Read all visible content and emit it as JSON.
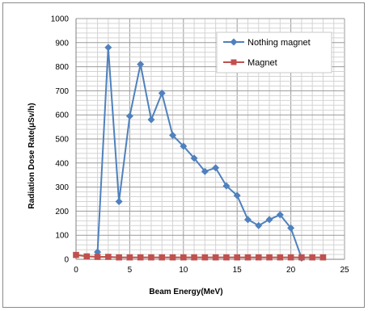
{
  "chart_data": {
    "type": "line",
    "xlabel": "Beam Energy(MeV)",
    "ylabel": "Radiation Dose Rate(μSv/h)",
    "xlim": [
      0,
      25
    ],
    "ylim": [
      0,
      1000
    ],
    "xticks": [
      0,
      5,
      10,
      15,
      20,
      25
    ],
    "yticks": [
      0,
      100,
      200,
      300,
      400,
      500,
      600,
      700,
      800,
      900,
      1000
    ],
    "xtick_labels": [
      "0",
      "5",
      "10",
      "15",
      "20",
      "25"
    ],
    "ytick_labels": [
      "0",
      "100",
      "200",
      "300",
      "400",
      "500",
      "600",
      "700",
      "800",
      "900",
      "1000"
    ],
    "grid": true,
    "legend_position": "top-right",
    "series": [
      {
        "name": "Nothing magnet",
        "color": "#4f81bd",
        "marker": "diamond",
        "x": [
          2,
          3,
          4,
          5,
          6,
          7,
          8,
          9,
          10,
          11,
          12,
          13,
          14,
          15,
          16,
          17,
          18,
          19,
          20,
          21
        ],
        "y": [
          30,
          880,
          240,
          595,
          810,
          580,
          690,
          515,
          470,
          420,
          365,
          380,
          305,
          265,
          165,
          140,
          165,
          185,
          130,
          5
        ]
      },
      {
        "name": "Magnet",
        "color": "#c0504d",
        "marker": "square",
        "x": [
          0,
          1,
          2,
          3,
          4,
          5,
          6,
          7,
          8,
          9,
          10,
          11,
          12,
          13,
          14,
          15,
          16,
          17,
          18,
          19,
          20,
          21,
          22,
          23
        ],
        "y": [
          18,
          12,
          10,
          10,
          8,
          8,
          8,
          8,
          8,
          8,
          8,
          8,
          8,
          8,
          8,
          8,
          8,
          8,
          8,
          8,
          8,
          8,
          8,
          8
        ]
      }
    ]
  }
}
